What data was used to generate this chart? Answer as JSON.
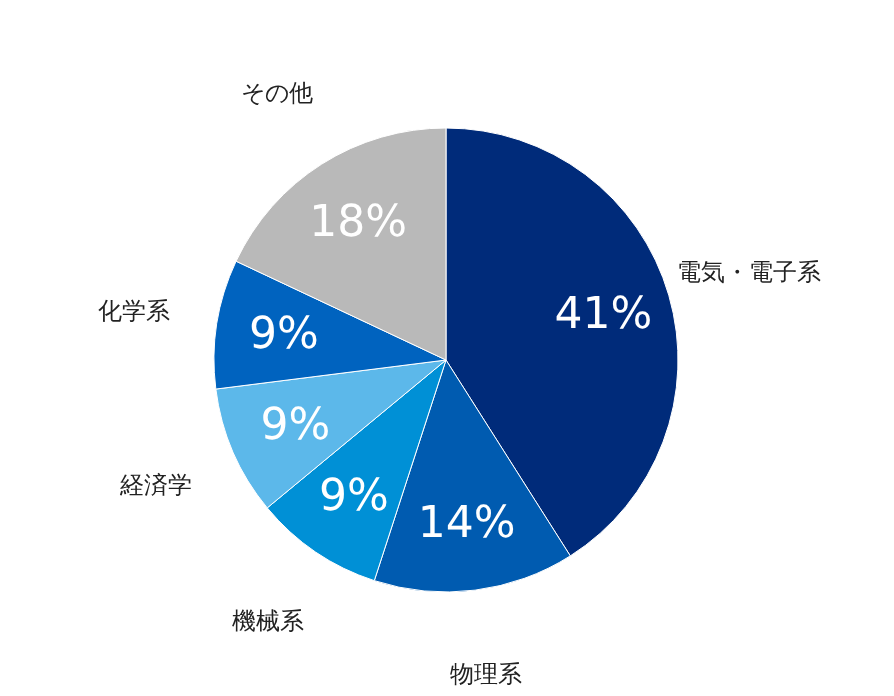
{
  "chart_data": {
    "type": "pie",
    "categories": [
      "電気・電子系",
      "物理系",
      "機械系",
      "経済学",
      "化学系",
      "その他"
    ],
    "values": [
      41,
      14,
      9,
      9,
      9,
      18
    ],
    "colors": [
      "#002b7a",
      "#005bb0",
      "#0090d6",
      "#5cb8ea",
      "#0063bf",
      "#b9b9b9"
    ],
    "value_labels": [
      "41%",
      "14%",
      "9%",
      "9%",
      "9%",
      "18%"
    ],
    "legend": false
  }
}
